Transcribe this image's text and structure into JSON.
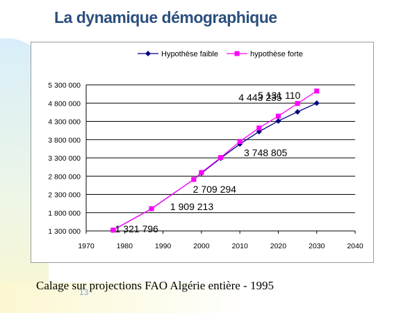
{
  "slide": {
    "title": "La dynamique démographique",
    "caption": "Calage sur projections FAO Algérie entière - 1995",
    "number": "13"
  },
  "chart_data": {
    "type": "line",
    "title": "",
    "xlabel": "",
    "ylabel": "",
    "xlim": [
      1970,
      2040
    ],
    "ylim": [
      1300000,
      5300000
    ],
    "x_ticks": [
      "1970",
      "1980",
      "1990",
      "2000",
      "2010",
      "2020",
      "2030",
      "2040"
    ],
    "x_tick_values": [
      1970,
      1980,
      1990,
      2000,
      2010,
      2020,
      2030,
      2040
    ],
    "y_ticks": [
      "1 300 000",
      "1 800 000",
      "2 300 000",
      "2 800 000",
      "3 300 000",
      "3 800 000",
      "4 300 000",
      "4 800 000",
      "5 300 000"
    ],
    "y_tick_values": [
      1300000,
      1800000,
      2300000,
      2800000,
      3300000,
      3800000,
      4300000,
      4800000,
      5300000
    ],
    "grid": true,
    "legend_position": "top",
    "series": [
      {
        "name": "Hypothèse faible",
        "color": "#000080",
        "marker": "diamond",
        "points": [
          [
            1977,
            1321796
          ],
          [
            1987,
            1909213
          ],
          [
            1998,
            2709294
          ],
          [
            2000,
            2880000
          ],
          [
            2005,
            3290000
          ],
          [
            2010,
            3680000
          ],
          [
            2015,
            4020000
          ],
          [
            2020,
            4310000
          ],
          [
            2025,
            4560000
          ],
          [
            2030,
            4800000
          ]
        ]
      },
      {
        "name": "hypothèse forte",
        "color": "#ff00ff",
        "marker": "square",
        "points": [
          [
            1977,
            1321796
          ],
          [
            1987,
            1909213
          ],
          [
            1998,
            2709294
          ],
          [
            2000,
            2900000
          ],
          [
            2005,
            3310000
          ],
          [
            2010,
            3748805
          ],
          [
            2015,
            4120000
          ],
          [
            2020,
            4443235
          ],
          [
            2025,
            4790000
          ],
          [
            2030,
            5131110
          ]
        ]
      }
    ],
    "data_labels": [
      {
        "text": "1 321 796",
        "x": 1977,
        "y": 1321796
      },
      {
        "text": "1 909 213",
        "x": 1987,
        "y": 1909213
      },
      {
        "text": "2 709 294",
        "x": 1998,
        "y": 2709294
      },
      {
        "text": "3 748 805",
        "x": 2010,
        "y": 3748805
      },
      {
        "text": "4 443 235",
        "x": 2020,
        "y": 4443235
      },
      {
        "text": "5 131 110",
        "x": 2030,
        "y": 5131110
      }
    ]
  }
}
